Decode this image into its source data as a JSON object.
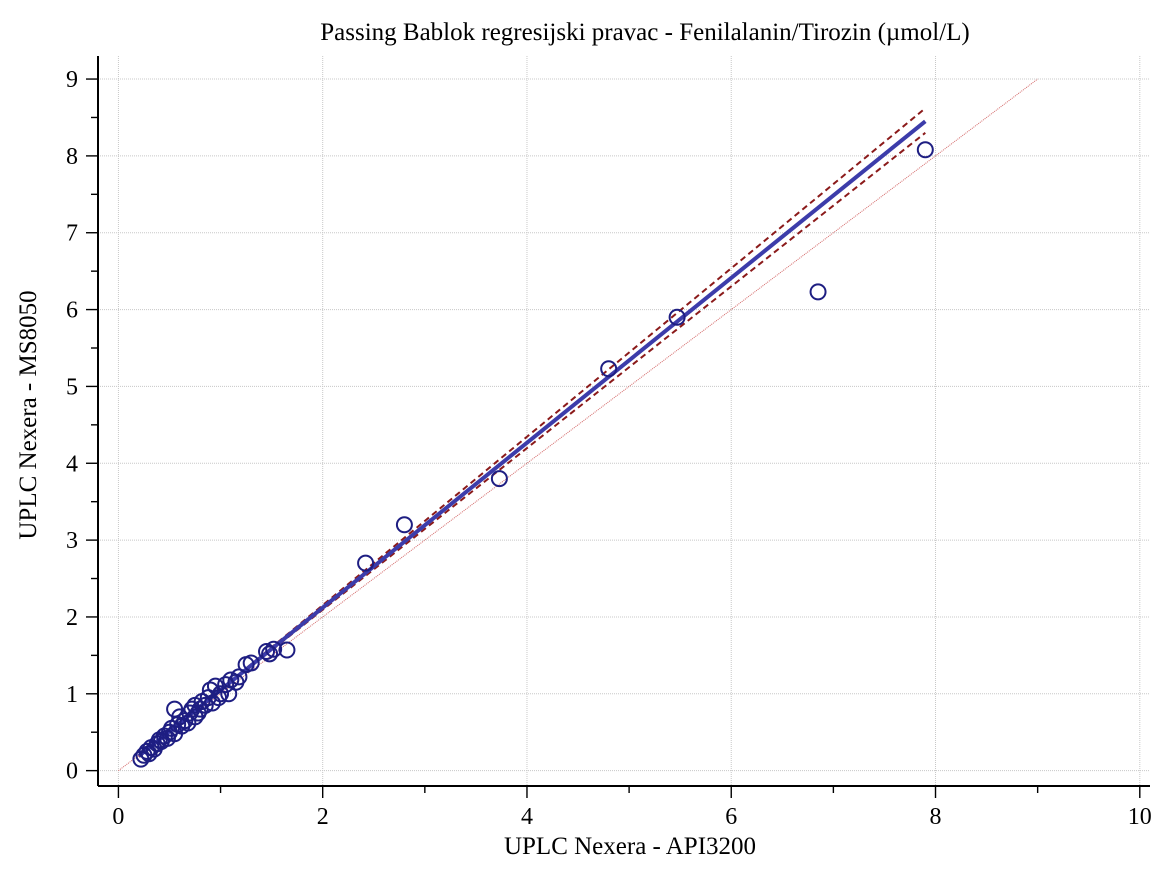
{
  "chart_data": {
    "type": "scatter",
    "title": "Passing Bablok regresijski pravac - Fenilalanin/Tirozin (µmol/L)",
    "xlabel": "UPLC Nexera - API3200",
    "ylabel": "UPLC Nexera - MS8050",
    "xlim": [
      -0.2,
      10.1
    ],
    "ylim": [
      -0.2,
      9.3
    ],
    "x_ticks": [
      "0",
      "2",
      "4",
      "6",
      "8",
      "10"
    ],
    "y_ticks": [
      "0",
      "1",
      "2",
      "3",
      "4",
      "5",
      "6",
      "7",
      "8",
      "9"
    ],
    "grid": true,
    "colors": {
      "points": "#1e1e82",
      "regression": "#3c3caa",
      "confidence": "#8b1a1a",
      "identity": "#d46a6a"
    },
    "regression_line": {
      "x": [
        0.2,
        7.9
      ],
      "y": [
        0.19,
        8.45
      ]
    },
    "confidence_upper": {
      "x": [
        0.2,
        7.9
      ],
      "y": [
        0.18,
        8.62
      ]
    },
    "confidence_lower": {
      "x": [
        0.2,
        7.9
      ],
      "y": [
        0.2,
        8.3
      ]
    },
    "identity_line": {
      "x": [
        0,
        9.0
      ],
      "y": [
        0,
        9.0
      ]
    },
    "points": [
      {
        "x": 0.22,
        "y": 0.15
      },
      {
        "x": 0.25,
        "y": 0.2
      },
      {
        "x": 0.28,
        "y": 0.25
      },
      {
        "x": 0.3,
        "y": 0.22
      },
      {
        "x": 0.32,
        "y": 0.3
      },
      {
        "x": 0.35,
        "y": 0.28
      },
      {
        "x": 0.38,
        "y": 0.35
      },
      {
        "x": 0.4,
        "y": 0.4
      },
      {
        "x": 0.42,
        "y": 0.38
      },
      {
        "x": 0.45,
        "y": 0.45
      },
      {
        "x": 0.48,
        "y": 0.42
      },
      {
        "x": 0.5,
        "y": 0.5
      },
      {
        "x": 0.52,
        "y": 0.55
      },
      {
        "x": 0.55,
        "y": 0.48
      },
      {
        "x": 0.55,
        "y": 0.8
      },
      {
        "x": 0.58,
        "y": 0.6
      },
      {
        "x": 0.6,
        "y": 0.7
      },
      {
        "x": 0.62,
        "y": 0.58
      },
      {
        "x": 0.65,
        "y": 0.65
      },
      {
        "x": 0.68,
        "y": 0.62
      },
      {
        "x": 0.7,
        "y": 0.75
      },
      {
        "x": 0.72,
        "y": 0.8
      },
      {
        "x": 0.75,
        "y": 0.7
      },
      {
        "x": 0.75,
        "y": 0.85
      },
      {
        "x": 0.78,
        "y": 0.75
      },
      {
        "x": 0.8,
        "y": 0.8
      },
      {
        "x": 0.82,
        "y": 0.9
      },
      {
        "x": 0.85,
        "y": 0.85
      },
      {
        "x": 0.88,
        "y": 0.95
      },
      {
        "x": 0.9,
        "y": 1.05
      },
      {
        "x": 0.92,
        "y": 0.88
      },
      {
        "x": 0.95,
        "y": 1.1
      },
      {
        "x": 0.98,
        "y": 0.95
      },
      {
        "x": 1.0,
        "y": 1.0
      },
      {
        "x": 1.05,
        "y": 1.12
      },
      {
        "x": 1.08,
        "y": 1.0
      },
      {
        "x": 1.1,
        "y": 1.18
      },
      {
        "x": 1.15,
        "y": 1.15
      },
      {
        "x": 1.18,
        "y": 1.22
      },
      {
        "x": 1.25,
        "y": 1.38
      },
      {
        "x": 1.3,
        "y": 1.4
      },
      {
        "x": 1.45,
        "y": 1.55
      },
      {
        "x": 1.48,
        "y": 1.52
      },
      {
        "x": 1.52,
        "y": 1.58
      },
      {
        "x": 1.65,
        "y": 1.57
      },
      {
        "x": 2.42,
        "y": 2.7
      },
      {
        "x": 2.8,
        "y": 3.2
      },
      {
        "x": 3.73,
        "y": 3.8
      },
      {
        "x": 4.8,
        "y": 5.23
      },
      {
        "x": 5.47,
        "y": 5.9
      },
      {
        "x": 6.85,
        "y": 6.23
      },
      {
        "x": 7.9,
        "y": 8.08
      }
    ]
  }
}
